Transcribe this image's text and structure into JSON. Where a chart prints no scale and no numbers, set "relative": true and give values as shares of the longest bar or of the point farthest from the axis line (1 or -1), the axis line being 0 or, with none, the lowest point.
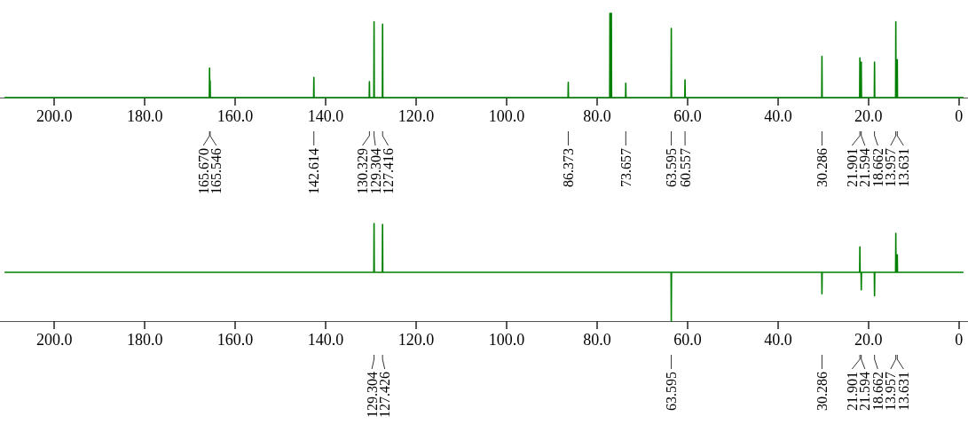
{
  "chart_data": [
    {
      "type": "line",
      "relative": true,
      "xlim": [
        212,
        -2
      ],
      "xticks": [
        {
          "value": 200,
          "label": "200.0"
        },
        {
          "value": 180,
          "label": "180.0"
        },
        {
          "value": 160,
          "label": "160.0"
        },
        {
          "value": 140,
          "label": "140.0"
        },
        {
          "value": 120,
          "label": "120.0"
        },
        {
          "value": 100,
          "label": "100.0"
        },
        {
          "value": 80,
          "label": "80.0"
        },
        {
          "value": 60,
          "label": "60.0"
        },
        {
          "value": 40,
          "label": "40.0"
        },
        {
          "value": 20,
          "label": "20.0"
        },
        0
      ],
      "x": [
        211,
        165.72,
        165.67,
        165.62,
        165.596,
        165.546,
        165.496,
        142.664,
        142.614,
        142.564,
        130.379,
        130.329,
        130.279,
        129.354,
        129.304,
        129.254,
        127.466,
        127.416,
        127.366,
        86.423,
        86.373,
        86.323,
        77.21,
        77.16,
        77.1,
        77.05,
        77.0,
        76.95,
        76.89,
        76.84,
        76.79,
        73.707,
        73.657,
        73.607,
        63.645,
        63.595,
        63.545,
        60.607,
        60.557,
        60.507,
        30.336,
        30.286,
        30.236,
        21.951,
        21.901,
        21.851,
        21.644,
        21.594,
        21.544,
        18.712,
        18.662,
        18.612,
        14.007,
        13.957,
        13.907,
        13.681,
        13.631,
        13.581,
        -1
      ],
      "series": [
        {
          "color": "#008000",
          "values": [
            0,
            0,
            0.35,
            0,
            0,
            0.2,
            0,
            0,
            0.24,
            0,
            0,
            0.19,
            0,
            0,
            0.9,
            0,
            0,
            0.87,
            0,
            0,
            0.18,
            0,
            0,
            1,
            0,
            0,
            1,
            0,
            0,
            1,
            0,
            0,
            0.17,
            0,
            0,
            0.82,
            0,
            0,
            0.21,
            0,
            0,
            0.49,
            0,
            0,
            0.47,
            0,
            0,
            0.42,
            0,
            0,
            0.42,
            0,
            0,
            0.9,
            0,
            0,
            0.45,
            0,
            0
          ]
        }
      ],
      "annotations": [
        {
          "text": "165.670",
          "x": 165.67
        },
        {
          "text": "165.546",
          "x": 165.546
        },
        {
          "text": "142.614",
          "x": 142.614
        },
        {
          "text": "130.329",
          "x": 130.329
        },
        {
          "text": "129.304",
          "x": 129.304
        },
        {
          "text": "127.416",
          "x": 127.416
        },
        {
          "text": "86.373",
          "x": 86.373
        },
        {
          "text": "73.657",
          "x": 73.657
        },
        {
          "text": "63.595",
          "x": 63.595
        },
        {
          "text": "60.557",
          "x": 60.557
        },
        {
          "text": "30.286",
          "x": 30.286
        },
        {
          "text": "21.901",
          "x": 21.901
        },
        {
          "text": "21.594",
          "x": 21.594
        },
        {
          "text": "18.662",
          "x": 18.662
        },
        {
          "text": "13.957",
          "x": 13.957
        },
        {
          "text": "13.631",
          "x": 13.631
        }
      ]
    },
    {
      "type": "line",
      "relative": true,
      "xlim": [
        212,
        -2
      ],
      "xticks": [
        {
          "value": 200,
          "label": "200.0"
        },
        {
          "value": 180,
          "label": "180.0"
        },
        {
          "value": 160,
          "label": "160.0"
        },
        {
          "value": 140,
          "label": "140.0"
        },
        {
          "value": 120,
          "label": "120.0"
        },
        {
          "value": 100,
          "label": "100.0"
        },
        {
          "value": 80,
          "label": "80.0"
        },
        {
          "value": 60,
          "label": "60.0"
        },
        {
          "value": 40,
          "label": "40.0"
        },
        {
          "value": 20,
          "label": "20.0"
        },
        0
      ],
      "x": [
        211,
        129.354,
        129.304,
        129.254,
        127.476,
        127.426,
        127.376,
        63.645,
        63.595,
        63.545,
        30.336,
        30.286,
        30.236,
        21.951,
        21.901,
        21.851,
        21.644,
        21.594,
        21.544,
        18.712,
        18.662,
        18.612,
        14.007,
        13.957,
        13.907,
        13.681,
        13.631,
        13.581,
        -1
      ],
      "series": [
        {
          "color": "#008000",
          "values": [
            0.5,
            0.5,
            1,
            0.5,
            0.5,
            0.99,
            0.5,
            0.5,
            0,
            0.5,
            0.5,
            0.28,
            0.5,
            0.5,
            0.76,
            0.5,
            0.5,
            0.32,
            0.5,
            0.5,
            0.26,
            0.5,
            0.5,
            0.9,
            0.5,
            0.5,
            0.68,
            0.5,
            0.5
          ]
        }
      ],
      "annotations": [
        {
          "text": "129.304",
          "x": 129.304
        },
        {
          "text": "127.426",
          "x": 127.426
        },
        {
          "text": "63.595",
          "x": 63.595
        },
        {
          "text": "30.286",
          "x": 30.286
        },
        {
          "text": "21.901",
          "x": 21.901
        },
        {
          "text": "21.594",
          "x": 21.594
        },
        {
          "text": "18.662",
          "x": 18.662
        },
        {
          "text": "13.957",
          "x": 13.957
        },
        {
          "text": "13.631",
          "x": 13.631
        }
      ]
    }
  ]
}
